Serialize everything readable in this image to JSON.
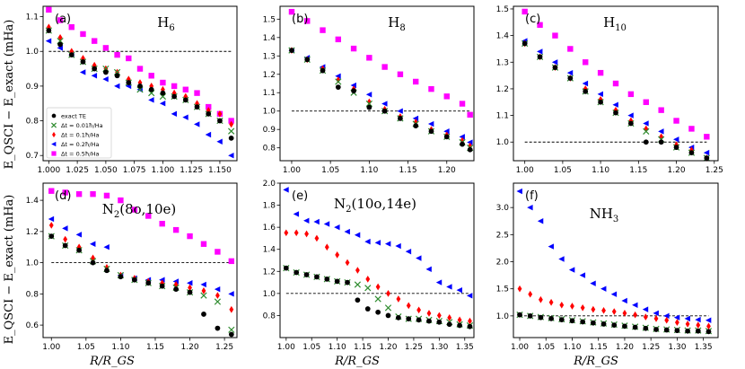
{
  "figure": {
    "ylabel": "E_QSCI − E_exact (mHa)",
    "xlabel": "R/R_GS"
  },
  "legend": {
    "panel": 0,
    "entries": [
      {
        "series": "exact",
        "label": "exact TE"
      },
      {
        "series": "d001",
        "label": "Δt = 0.01ħ/Ha"
      },
      {
        "series": "d01",
        "label": "Δt = 0.1ħ/Ha"
      },
      {
        "series": "d02",
        "label": "Δt = 0.2ħ/Ha"
      },
      {
        "series": "d05",
        "label": "Δt = 0.5ħ/Ha"
      }
    ]
  },
  "styles": {
    "exact": {
      "color": "#000000",
      "marker": "circle"
    },
    "d001": {
      "color": "#2e8b2e",
      "marker": "x"
    },
    "d01": {
      "color": "#ff0000",
      "marker": "diamond"
    },
    "d02": {
      "color": "#0000ff",
      "marker": "triangle-left"
    },
    "d05": {
      "color": "#ff00ff",
      "marker": "square"
    }
  },
  "chart_data": [
    {
      "type": "scatter",
      "panel_label": "(a)",
      "title": "H",
      "title_sub": "6",
      "xlim": [
        0.995,
        1.165
      ],
      "ylim": [
        0.685,
        1.13
      ],
      "xticks": [
        "1.000",
        "1.025",
        "1.050",
        "1.075",
        "1.100",
        "1.125",
        "1.150"
      ],
      "xtick_values": [
        1.0,
        1.025,
        1.05,
        1.075,
        1.1,
        1.125,
        1.15
      ],
      "yticks": [
        "0.7",
        "0.8",
        "0.9",
        "1.0",
        "1.1"
      ],
      "ytick_values": [
        0.7,
        0.8,
        0.9,
        1.0,
        1.1
      ],
      "reference_y": 1.0,
      "x": [
        1.0,
        1.01,
        1.02,
        1.03,
        1.04,
        1.05,
        1.06,
        1.07,
        1.08,
        1.09,
        1.1,
        1.11,
        1.12,
        1.13,
        1.14,
        1.15,
        1.16
      ],
      "series": [
        {
          "key": "d05",
          "values": [
            1.12,
            1.09,
            1.07,
            1.05,
            1.03,
            1.01,
            0.99,
            0.98,
            0.95,
            0.93,
            0.91,
            0.9,
            0.89,
            0.88,
            0.84,
            0.82,
            0.8
          ]
        },
        {
          "key": "d02",
          "values": [
            1.03,
            1.01,
            0.99,
            0.94,
            0.93,
            0.92,
            0.9,
            0.9,
            0.89,
            0.86,
            0.85,
            0.82,
            0.81,
            0.79,
            0.76,
            0.74,
            0.7
          ]
        },
        {
          "key": "d01",
          "values": [
            1.07,
            1.04,
            1.0,
            0.98,
            0.96,
            0.95,
            0.94,
            0.92,
            0.91,
            0.9,
            0.89,
            0.88,
            0.87,
            0.85,
            0.83,
            0.82,
            0.79
          ]
        },
        {
          "key": "d001",
          "values": [
            1.06,
            1.03,
            0.99,
            0.97,
            0.95,
            0.95,
            0.94,
            0.91,
            0.89,
            0.88,
            0.87,
            0.87,
            0.86,
            0.84,
            0.82,
            0.8,
            0.77
          ]
        },
        {
          "key": "exact",
          "values": [
            1.06,
            1.02,
            0.99,
            0.97,
            0.95,
            0.94,
            0.93,
            0.91,
            0.9,
            0.89,
            0.88,
            0.87,
            0.86,
            0.84,
            0.82,
            0.8,
            0.75
          ]
        }
      ]
    },
    {
      "type": "scatter",
      "panel_label": "(b)",
      "title": "H",
      "title_sub": "8",
      "xlim": [
        0.985,
        1.235
      ],
      "ylim": [
        0.73,
        1.57
      ],
      "xticks": [
        "1.00",
        "1.05",
        "1.10",
        "1.15",
        "1.20"
      ],
      "xtick_values": [
        1.0,
        1.05,
        1.1,
        1.15,
        1.2
      ],
      "yticks": [
        "0.8",
        "0.9",
        "1.0",
        "1.1",
        "1.2",
        "1.3",
        "1.4",
        "1.5"
      ],
      "ytick_values": [
        0.8,
        0.9,
        1.0,
        1.1,
        1.2,
        1.3,
        1.4,
        1.5
      ],
      "reference_y": 1.0,
      "x": [
        1.0,
        1.02,
        1.04,
        1.06,
        1.08,
        1.1,
        1.12,
        1.14,
        1.16,
        1.18,
        1.2,
        1.22,
        1.23
      ],
      "series": [
        {
          "key": "d05",
          "values": [
            1.54,
            1.49,
            1.44,
            1.39,
            1.34,
            1.29,
            1.24,
            1.2,
            1.16,
            1.12,
            1.08,
            1.04,
            0.98
          ]
        },
        {
          "key": "d02",
          "values": [
            1.33,
            1.29,
            1.24,
            1.19,
            1.14,
            1.09,
            1.04,
            1.0,
            0.96,
            0.93,
            0.89,
            0.86,
            0.83
          ]
        },
        {
          "key": "d01",
          "values": [
            1.33,
            1.28,
            1.23,
            1.17,
            1.12,
            1.05,
            1.01,
            0.97,
            0.94,
            0.9,
            0.87,
            0.84,
            0.81
          ]
        },
        {
          "key": "d001",
          "values": [
            1.33,
            1.28,
            1.22,
            1.16,
            1.1,
            1.04,
            1.0,
            0.96,
            0.93,
            0.89,
            0.86,
            0.83,
            0.8
          ]
        },
        {
          "key": "exact",
          "values": [
            1.33,
            1.28,
            1.22,
            1.13,
            1.11,
            1.02,
            1.0,
            0.96,
            0.92,
            0.89,
            0.86,
            0.82,
            0.79
          ]
        }
      ]
    },
    {
      "type": "scatter",
      "panel_label": "(c)",
      "title": "H",
      "title_sub": "10",
      "xlim": [
        0.985,
        1.255
      ],
      "ylim": [
        0.93,
        1.51
      ],
      "xticks": [
        "1.00",
        "1.05",
        "1.10",
        "1.15",
        "1.20",
        "1.25"
      ],
      "xtick_values": [
        1.0,
        1.05,
        1.1,
        1.15,
        1.2,
        1.25
      ],
      "yticks": [
        "1.0",
        "1.1",
        "1.2",
        "1.3",
        "1.4",
        "1.5"
      ],
      "ytick_values": [
        1.0,
        1.1,
        1.2,
        1.3,
        1.4,
        1.5
      ],
      "reference_y": 1.0,
      "x": [
        1.0,
        1.02,
        1.04,
        1.06,
        1.08,
        1.1,
        1.12,
        1.14,
        1.16,
        1.18,
        1.2,
        1.22,
        1.24
      ],
      "series": [
        {
          "key": "d05",
          "values": [
            1.49,
            1.44,
            1.4,
            1.35,
            1.3,
            1.26,
            1.22,
            1.18,
            1.15,
            1.12,
            1.08,
            1.05,
            1.02
          ]
        },
        {
          "key": "d02",
          "values": [
            1.38,
            1.34,
            1.3,
            1.26,
            1.22,
            1.18,
            1.14,
            1.1,
            1.07,
            1.04,
            1.01,
            0.98,
            0.96
          ]
        },
        {
          "key": "d01",
          "values": [
            1.37,
            1.32,
            1.28,
            1.24,
            1.2,
            1.16,
            1.12,
            1.08,
            1.05,
            1.02,
            0.99,
            0.97,
            0.94
          ]
        },
        {
          "key": "d001",
          "values": [
            1.37,
            1.32,
            1.28,
            1.24,
            1.19,
            1.15,
            1.11,
            1.07,
            1.04,
            1.01,
            0.98,
            0.96,
            0.94
          ]
        },
        {
          "key": "exact",
          "values": [
            1.37,
            1.32,
            1.28,
            1.24,
            1.19,
            1.15,
            1.11,
            1.07,
            1.0,
            1.0,
            0.98,
            0.96,
            0.94
          ]
        }
      ]
    },
    {
      "type": "scatter",
      "panel_label": "(d)",
      "title": "N",
      "title_sub": "2",
      "title_rest": "(8o,10e)",
      "xlim": [
        0.988,
        1.268
      ],
      "ylim": [
        0.52,
        1.51
      ],
      "xticks": [
        "1.00",
        "1.05",
        "1.10",
        "1.15",
        "1.20",
        "1.25"
      ],
      "xtick_values": [
        1.0,
        1.05,
        1.1,
        1.15,
        1.2,
        1.25
      ],
      "yticks": [
        "0.6",
        "0.8",
        "1.0",
        "1.2",
        "1.4"
      ],
      "ytick_values": [
        0.6,
        0.8,
        1.0,
        1.2,
        1.4
      ],
      "reference_y": 1.0,
      "x": [
        1.0,
        1.02,
        1.04,
        1.06,
        1.08,
        1.1,
        1.12,
        1.14,
        1.16,
        1.18,
        1.2,
        1.22,
        1.24,
        1.26
      ],
      "series": [
        {
          "key": "d05",
          "values": [
            1.46,
            1.45,
            1.44,
            1.44,
            1.43,
            1.4,
            1.34,
            1.3,
            1.25,
            1.21,
            1.17,
            1.12,
            1.07,
            1.01
          ]
        },
        {
          "key": "d02",
          "values": [
            1.28,
            1.22,
            1.18,
            1.12,
            1.1,
            0.92,
            0.9,
            0.89,
            0.89,
            0.88,
            0.87,
            0.86,
            0.83,
            0.8
          ]
        },
        {
          "key": "d01",
          "values": [
            1.24,
            1.15,
            1.1,
            1.03,
            0.97,
            0.92,
            0.9,
            0.88,
            0.87,
            0.86,
            0.84,
            0.82,
            0.79,
            0.7
          ]
        },
        {
          "key": "d001",
          "values": [
            1.17,
            1.11,
            1.08,
            1.01,
            0.96,
            0.92,
            0.89,
            0.87,
            0.85,
            0.84,
            0.81,
            0.79,
            0.75,
            0.57
          ]
        },
        {
          "key": "exact",
          "values": [
            1.17,
            1.11,
            1.08,
            1.0,
            0.95,
            0.91,
            0.89,
            0.87,
            0.85,
            0.83,
            0.81,
            0.67,
            0.58,
            0.54
          ]
        }
      ]
    },
    {
      "type": "scatter",
      "panel_label": "(e)",
      "title": "N",
      "title_sub": "2",
      "title_rest": "(10o,14e)",
      "xlim": [
        0.988,
        1.368
      ],
      "ylim": [
        0.6,
        2.0
      ],
      "xticks": [
        "1.00",
        "1.05",
        "1.10",
        "1.15",
        "1.20",
        "1.25",
        "1.30",
        "1.35"
      ],
      "xtick_values": [
        1.0,
        1.05,
        1.1,
        1.15,
        1.2,
        1.25,
        1.3,
        1.35
      ],
      "yticks": [
        "0.8",
        "1.0",
        "1.2",
        "1.4",
        "1.6",
        "1.8",
        "2.0"
      ],
      "ytick_values": [
        0.8,
        1.0,
        1.2,
        1.4,
        1.6,
        1.8,
        2.0
      ],
      "reference_y": 1.0,
      "x": [
        1.0,
        1.02,
        1.04,
        1.06,
        1.08,
        1.1,
        1.12,
        1.14,
        1.16,
        1.18,
        1.2,
        1.22,
        1.24,
        1.26,
        1.28,
        1.3,
        1.32,
        1.34,
        1.36
      ],
      "series": [
        {
          "key": "d02",
          "values": [
            1.94,
            1.72,
            1.66,
            1.65,
            1.63,
            1.6,
            1.56,
            1.53,
            1.47,
            1.46,
            1.45,
            1.43,
            1.38,
            1.32,
            1.22,
            1.1,
            1.06,
            1.03,
            0.98
          ]
        },
        {
          "key": "d01",
          "values": [
            1.55,
            1.55,
            1.54,
            1.5,
            1.42,
            1.35,
            1.28,
            1.21,
            1.13,
            1.06,
            1.0,
            0.95,
            0.89,
            0.85,
            0.82,
            0.8,
            0.78,
            0.76,
            0.75
          ]
        },
        {
          "key": "d001",
          "values": [
            1.23,
            1.19,
            1.17,
            1.15,
            1.13,
            1.11,
            1.1,
            1.08,
            1.05,
            0.95,
            0.87,
            0.79,
            0.77,
            0.77,
            0.76,
            0.75,
            0.74,
            0.72,
            0.71
          ]
        },
        {
          "key": "exact",
          "values": [
            1.23,
            1.19,
            1.17,
            1.15,
            1.13,
            1.11,
            1.1,
            0.94,
            0.86,
            0.83,
            0.8,
            0.78,
            0.77,
            0.76,
            0.75,
            0.74,
            0.72,
            0.71,
            0.7
          ]
        }
      ]
    },
    {
      "type": "scatter",
      "panel_label": "(f)",
      "title": "NH",
      "title_sub": "3",
      "xlim": [
        0.988,
        1.378
      ],
      "ylim": [
        0.6,
        3.45
      ],
      "xticks": [
        "1.00",
        "1.05",
        "1.10",
        "1.15",
        "1.20",
        "1.25",
        "1.30",
        "1.35"
      ],
      "xtick_values": [
        1.0,
        1.05,
        1.1,
        1.15,
        1.2,
        1.25,
        1.3,
        1.35
      ],
      "yticks": [
        "1.0",
        "1.5",
        "2.0",
        "2.5",
        "3.0"
      ],
      "ytick_values": [
        1.0,
        1.5,
        2.0,
        2.5,
        3.0
      ],
      "reference_y": 1.0,
      "x": [
        1.0,
        1.02,
        1.04,
        1.06,
        1.08,
        1.1,
        1.12,
        1.14,
        1.16,
        1.18,
        1.2,
        1.22,
        1.24,
        1.26,
        1.28,
        1.3,
        1.32,
        1.34,
        1.36
      ],
      "series": [
        {
          "key": "d02",
          "values": [
            3.3,
            3.0,
            2.75,
            2.28,
            2.05,
            1.85,
            1.75,
            1.6,
            1.5,
            1.4,
            1.28,
            1.2,
            1.12,
            1.05,
            1.0,
            0.97,
            0.95,
            0.93,
            0.92
          ]
        },
        {
          "key": "d01",
          "values": [
            1.5,
            1.4,
            1.3,
            1.25,
            1.2,
            1.18,
            1.15,
            1.12,
            1.1,
            1.08,
            1.05,
            1.02,
            0.98,
            0.95,
            0.92,
            0.88,
            0.85,
            0.83,
            0.81
          ]
        },
        {
          "key": "d001",
          "values": [
            1.02,
            1.0,
            0.98,
            0.96,
            0.94,
            0.92,
            0.9,
            0.88,
            0.86,
            0.84,
            0.82,
            0.8,
            0.78,
            0.76,
            0.75,
            0.74,
            0.73,
            0.73,
            0.72
          ]
        },
        {
          "key": "exact",
          "values": [
            1.02,
            1.0,
            0.97,
            0.95,
            0.93,
            0.91,
            0.89,
            0.87,
            0.85,
            0.83,
            0.81,
            0.79,
            0.77,
            0.75,
            0.74,
            0.73,
            0.72,
            0.72,
            0.71
          ]
        }
      ]
    }
  ]
}
